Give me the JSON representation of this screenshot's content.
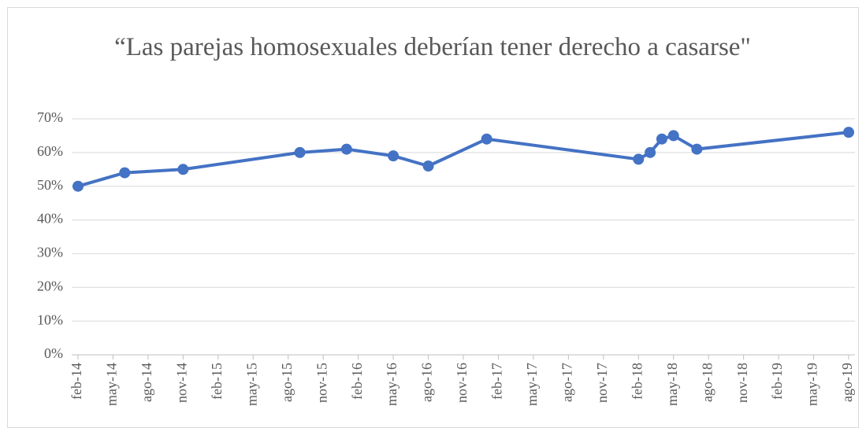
{
  "chart_data": {
    "type": "line",
    "title": "“Las parejas homosexuales deberían tener derecho a casarse\"",
    "x": [
      "2014-02",
      "2014-06",
      "2014-11",
      "2015-09",
      "2016-01",
      "2016-05",
      "2016-08",
      "2017-01",
      "2018-02",
      "2018-03",
      "2018-04",
      "2018-05",
      "2018-07",
      "2019-08"
    ],
    "series": [
      {
        "name": "",
        "color": "#4472c4",
        "values": [
          50,
          54,
          55,
          60,
          61,
          59,
          56,
          64,
          58,
          60,
          64,
          65,
          61,
          66
        ]
      }
    ],
    "ylim": [
      0,
      70
    ],
    "yticks": [
      {
        "value": 0,
        "label": "0%"
      },
      {
        "value": 10,
        "label": "10%"
      },
      {
        "value": 20,
        "label": "20%"
      },
      {
        "value": 30,
        "label": "30%"
      },
      {
        "value": 40,
        "label": "40%"
      },
      {
        "value": 50,
        "label": "50%"
      },
      {
        "value": 60,
        "label": "60%"
      },
      {
        "value": 70,
        "label": "70%"
      }
    ],
    "xlim": [
      "2014-02",
      "2019-08"
    ],
    "xticks": [
      {
        "value": "2014-02",
        "label": "feb-14"
      },
      {
        "value": "2014-05",
        "label": "may-14"
      },
      {
        "value": "2014-08",
        "label": "ago-14"
      },
      {
        "value": "2014-11",
        "label": "nov-14"
      },
      {
        "value": "2015-02",
        "label": "feb-15"
      },
      {
        "value": "2015-05",
        "label": "may-15"
      },
      {
        "value": "2015-08",
        "label": "ago-15"
      },
      {
        "value": "2015-11",
        "label": "nov-15"
      },
      {
        "value": "2016-02",
        "label": "feb-16"
      },
      {
        "value": "2016-05",
        "label": "may-16"
      },
      {
        "value": "2016-08",
        "label": "ago-16"
      },
      {
        "value": "2016-11",
        "label": "nov-16"
      },
      {
        "value": "2017-02",
        "label": "feb-17"
      },
      {
        "value": "2017-05",
        "label": "may-17"
      },
      {
        "value": "2017-08",
        "label": "ago-17"
      },
      {
        "value": "2017-11",
        "label": "nov-17"
      },
      {
        "value": "2018-02",
        "label": "feb-18"
      },
      {
        "value": "2018-05",
        "label": "may-18"
      },
      {
        "value": "2018-08",
        "label": "ago-18"
      },
      {
        "value": "2018-11",
        "label": "nov-18"
      },
      {
        "value": "2019-02",
        "label": "feb-19"
      },
      {
        "value": "2019-05",
        "label": "may-19"
      },
      {
        "value": "2019-08",
        "label": "ago-19"
      }
    ],
    "grid": true
  }
}
